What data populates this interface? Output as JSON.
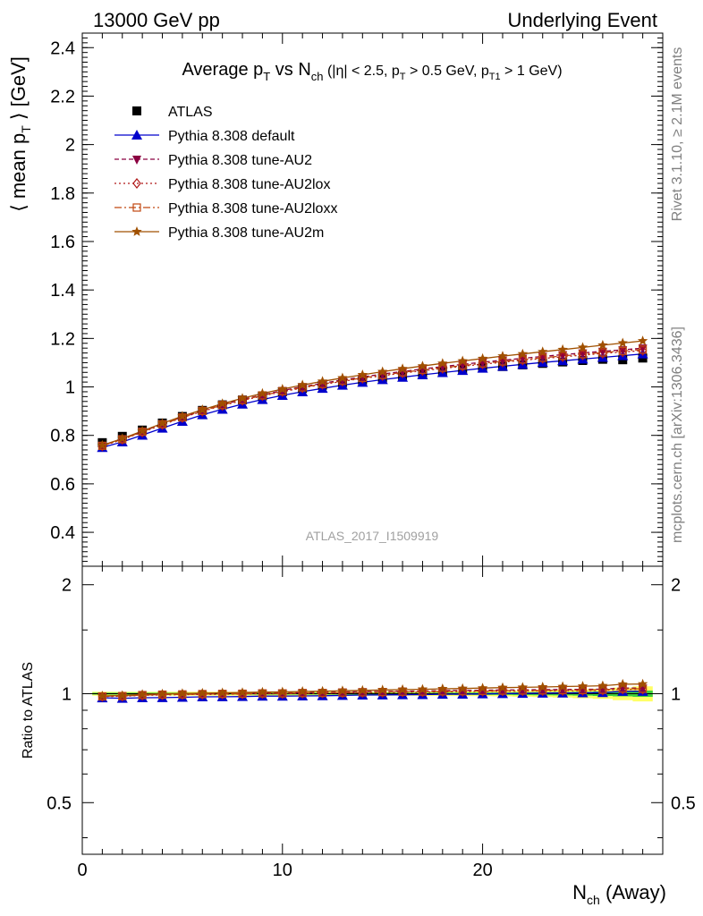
{
  "header": {
    "left": "13000 GeV pp",
    "right": "Underlying Event"
  },
  "side": {
    "rivet": "Rivet 3.1.10, ≥ 2.1M events",
    "mcplots": "mcplots.cern.ch [arXiv:1306.3436]"
  },
  "watermark": "ATLAS_2017_I1509919",
  "colors": {
    "data": "#000000",
    "default": "#0000cc",
    "au2": "#8b0040",
    "au2lox": "#b01818",
    "au2loxx": "#c04810",
    "au2m": "#a05000",
    "band_inner": "#3cd03c",
    "band_outer": "#ffff66"
  },
  "chart_data": [
    {
      "type": "scatter",
      "panel": "main",
      "title_parts": {
        "a": "Average p",
        "a_sub": "T",
        "b": " vs N",
        "b_sub": "ch",
        "c": " (|η| < 2.5, p",
        "c_sub": "T",
        "d": " > 0.5 GeV, p",
        "d_sub": "T1",
        "e": " > 1 GeV)"
      },
      "ylabel_parts": {
        "a": "⟨ mean p",
        "sub": "T",
        "b": " ⟩ [GeV]"
      },
      "xlim": [
        0,
        29
      ],
      "ylim": [
        0.26,
        2.46
      ],
      "yticks": [
        0.4,
        0.6,
        0.8,
        1,
        1.2,
        1.4,
        1.6,
        1.8,
        2,
        2.2,
        2.4
      ],
      "ytick_labels": [
        "0.4",
        "0.6",
        "0.8",
        "1",
        "1.2",
        "1.4",
        "1.6",
        "1.8",
        "2",
        "2.2",
        "2.4"
      ],
      "x": [
        1,
        2,
        3,
        4,
        5,
        6,
        7,
        8,
        9,
        10,
        11,
        12,
        13,
        14,
        15,
        16,
        17,
        18,
        19,
        20,
        21,
        22,
        23,
        24,
        25,
        26,
        27,
        28
      ],
      "series": [
        {
          "key": "data",
          "name": "ATLAS",
          "marker": "square",
          "values": [
            0.77,
            0.796,
            0.822,
            0.851,
            0.878,
            0.903,
            0.926,
            0.946,
            0.963,
            0.98,
            0.994,
            1.007,
            1.018,
            1.028,
            1.038,
            1.047,
            1.056,
            1.063,
            1.071,
            1.078,
            1.084,
            1.091,
            1.097,
            1.103,
            1.109,
            1.114,
            1.112,
            1.119
          ]
        },
        {
          "key": "default",
          "name": "Pythia 8.308 default",
          "marker": "triangle-up",
          "dash": "",
          "values": [
            0.75,
            0.773,
            0.801,
            0.83,
            0.858,
            0.885,
            0.908,
            0.929,
            0.948,
            0.965,
            0.98,
            0.994,
            1.007,
            1.019,
            1.03,
            1.04,
            1.05,
            1.059,
            1.068,
            1.077,
            1.085,
            1.093,
            1.101,
            1.108,
            1.115,
            1.122,
            1.129,
            1.136
          ]
        },
        {
          "key": "au2",
          "name": "Pythia 8.308 tune-AU2",
          "marker": "triangle-down",
          "dash": "5,3",
          "values": [
            0.758,
            0.785,
            0.816,
            0.847,
            0.876,
            0.902,
            0.927,
            0.948,
            0.967,
            0.985,
            1.001,
            1.015,
            1.029,
            1.041,
            1.053,
            1.064,
            1.074,
            1.084,
            1.093,
            1.102,
            1.11,
            1.118,
            1.126,
            1.133,
            1.14,
            1.147,
            1.153,
            1.16
          ]
        },
        {
          "key": "au2lox",
          "name": "Pythia 8.308 tune-AU2lox",
          "marker": "diamond-open",
          "dash": "2,3",
          "values": [
            0.756,
            0.783,
            0.813,
            0.844,
            0.873,
            0.899,
            0.923,
            0.944,
            0.963,
            0.98,
            0.996,
            1.01,
            1.023,
            1.035,
            1.046,
            1.057,
            1.067,
            1.076,
            1.085,
            1.094,
            1.102,
            1.11,
            1.117,
            1.124,
            1.131,
            1.138,
            1.144,
            1.15
          ]
        },
        {
          "key": "au2loxx",
          "name": "Pythia 8.308 tune-AU2loxx",
          "marker": "square-open",
          "dash": "8,3,2,3",
          "values": [
            0.757,
            0.784,
            0.815,
            0.846,
            0.874,
            0.901,
            0.925,
            0.946,
            0.965,
            0.982,
            0.998,
            1.012,
            1.025,
            1.037,
            1.049,
            1.06,
            1.07,
            1.079,
            1.088,
            1.097,
            1.105,
            1.113,
            1.12,
            1.128,
            1.135,
            1.142,
            1.148,
            1.154
          ]
        },
        {
          "key": "au2m",
          "name": "Pythia 8.308 tune-AU2m",
          "marker": "star",
          "dash": "",
          "values": [
            0.759,
            0.787,
            0.818,
            0.85,
            0.879,
            0.906,
            0.931,
            0.953,
            0.973,
            0.991,
            1.008,
            1.023,
            1.037,
            1.05,
            1.063,
            1.075,
            1.086,
            1.097,
            1.107,
            1.117,
            1.127,
            1.136,
            1.145,
            1.154,
            1.163,
            1.172,
            1.181,
            1.19
          ]
        }
      ],
      "legend": "top-left"
    },
    {
      "type": "scatter",
      "panel": "ratio",
      "ylabel": "Ratio to ATLAS",
      "xlabel_parts": {
        "a": "N",
        "sub": "ch",
        "b": " (Away)"
      },
      "xlim": [
        0,
        29
      ],
      "ylim": [
        0.36,
        2.25
      ],
      "log_y": true,
      "xticks": [
        0,
        10,
        20
      ],
      "xtick_labels": [
        "0",
        "10",
        "20"
      ],
      "yticks": [
        0.5,
        1,
        2
      ],
      "ytick_labels": [
        "0.5",
        "1",
        "2"
      ],
      "band": {
        "inner": [
          0.006,
          0.006,
          0.006,
          0.006,
          0.006,
          0.006,
          0.006,
          0.006,
          0.006,
          0.006,
          0.006,
          0.006,
          0.006,
          0.006,
          0.006,
          0.006,
          0.006,
          0.007,
          0.007,
          0.008,
          0.008,
          0.009,
          0.01,
          0.011,
          0.012,
          0.014,
          0.017,
          0.02
        ],
        "outer": [
          0.012,
          0.012,
          0.012,
          0.012,
          0.012,
          0.012,
          0.012,
          0.012,
          0.012,
          0.012,
          0.012,
          0.012,
          0.012,
          0.012,
          0.013,
          0.013,
          0.014,
          0.014,
          0.015,
          0.016,
          0.017,
          0.019,
          0.021,
          0.024,
          0.028,
          0.032,
          0.04,
          0.048
        ]
      }
    }
  ]
}
